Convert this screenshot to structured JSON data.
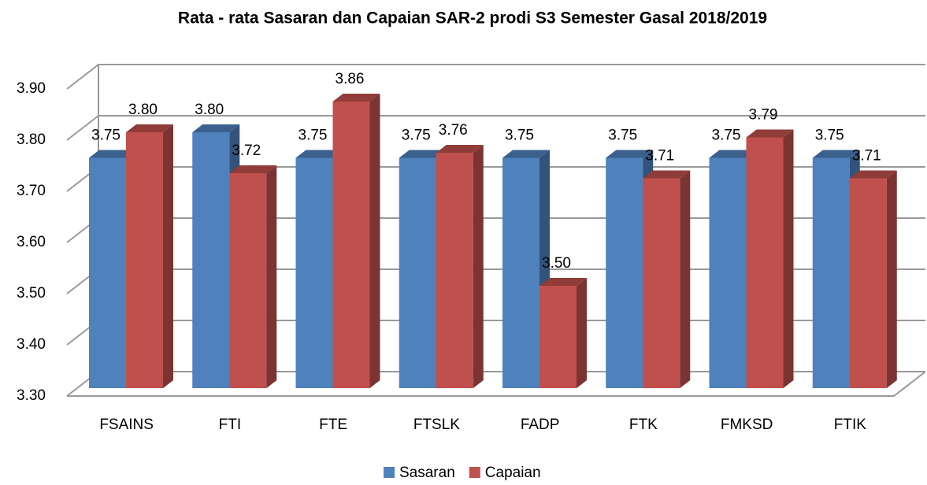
{
  "chart_data": {
    "type": "bar3d",
    "title": "Rata - rata Sasaran dan Capaian SAR-2 prodi S3 Semester Gasal 2018/2019",
    "categories": [
      "FSAINS",
      "FTI",
      "FTE",
      "FTSLK",
      "FADP",
      "FTK",
      "FMKSD",
      "FTIK"
    ],
    "series": [
      {
        "name": "Sasaran",
        "color": "#4f81bd",
        "values": [
          3.75,
          3.8,
          3.75,
          3.75,
          3.75,
          3.75,
          3.75,
          3.75
        ],
        "value_labels": [
          "3.75",
          "3.80",
          "3.75",
          "3.75",
          "3.75",
          "3.75",
          "3.75",
          "3.75"
        ]
      },
      {
        "name": "Capaian",
        "color": "#c0504d",
        "values": [
          3.8,
          3.72,
          3.86,
          3.76,
          3.5,
          3.71,
          3.79,
          3.71
        ],
        "value_labels": [
          "3.80",
          "3.72",
          "3.86",
          "3.76",
          "3.50",
          "3.71",
          "3.79",
          "3.71"
        ]
      }
    ],
    "ylim": [
      3.3,
      3.9
    ],
    "yticks": [
      {
        "value": 3.3,
        "label": "3.30"
      },
      {
        "value": 3.4,
        "label": "3.40"
      },
      {
        "value": 3.5,
        "label": "3.50"
      },
      {
        "value": 3.6,
        "label": "3.60"
      },
      {
        "value": 3.7,
        "label": "3.70"
      },
      {
        "value": 3.8,
        "label": "3.80"
      },
      {
        "value": 3.9,
        "label": "3.90"
      }
    ],
    "grid": true,
    "legend": "bottom"
  }
}
